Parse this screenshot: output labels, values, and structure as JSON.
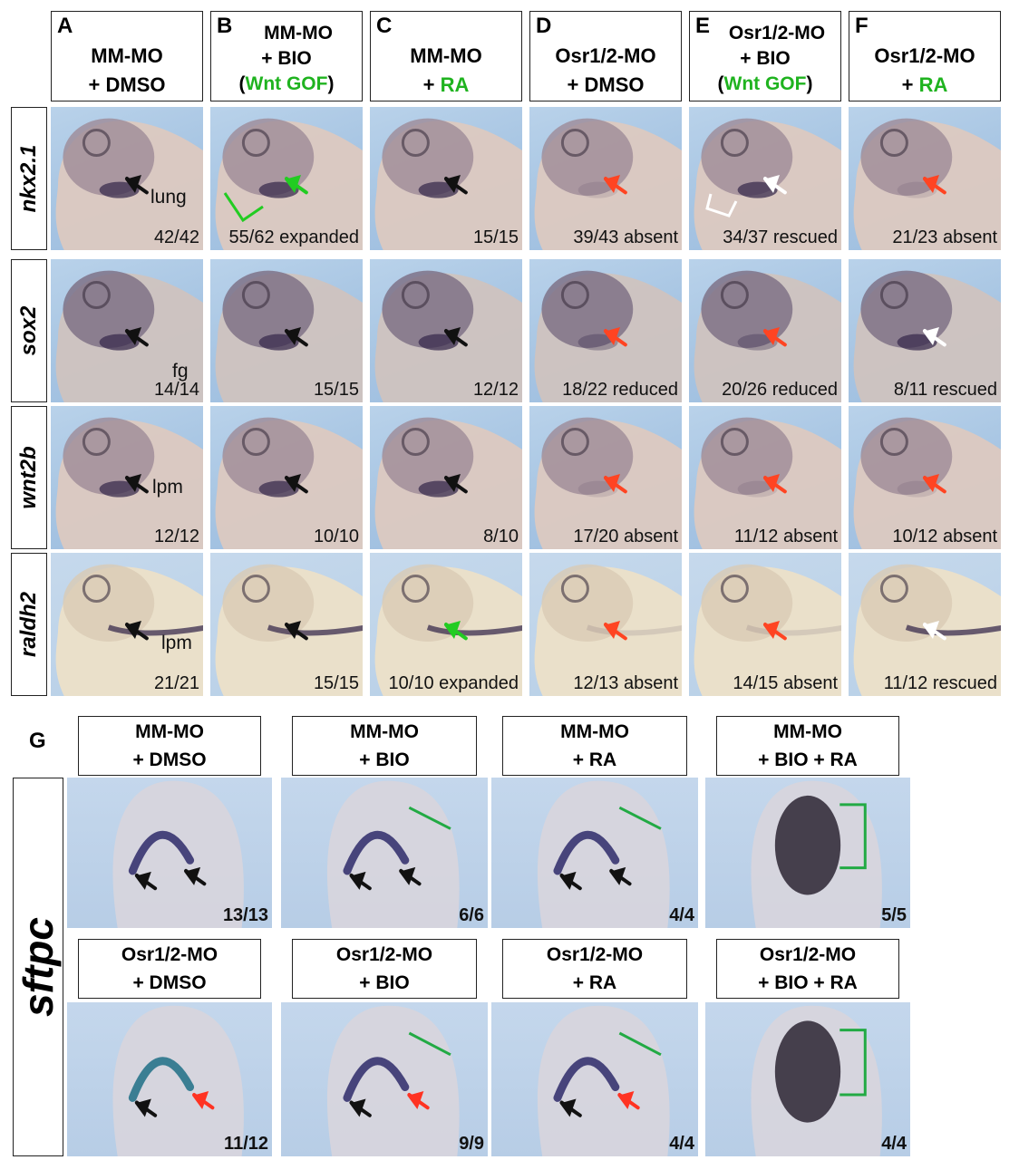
{
  "top_headers": [
    {
      "letter": "A",
      "line1": "MM-MO",
      "line2_parts": [
        {
          "t": "+ DMSO",
          "c": ""
        }
      ]
    },
    {
      "letter": "B",
      "line1": "MM-MO",
      "line2_parts": [
        {
          "t": "+ BIO",
          "c": ""
        }
      ],
      "line3_parts": [
        {
          "t": "(",
          "c": ""
        },
        {
          "t": "Wnt GOF",
          "c": "green"
        },
        {
          "t": ")",
          "c": ""
        }
      ]
    },
    {
      "letter": "C",
      "line1": "MM-MO",
      "line2_parts": [
        {
          "t": "+ ",
          "c": ""
        },
        {
          "t": "RA",
          "c": "green"
        }
      ]
    },
    {
      "letter": "D",
      "line1": "Osr1/2-MO",
      "line2_parts": [
        {
          "t": "+ DMSO",
          "c": ""
        }
      ]
    },
    {
      "letter": "E",
      "line1": "Osr1/2-MO",
      "line2_parts": [
        {
          "t": "+ BIO",
          "c": ""
        }
      ],
      "line3_parts": [
        {
          "t": "(",
          "c": ""
        },
        {
          "t": "Wnt GOF",
          "c": "green"
        },
        {
          "t": ")",
          "c": ""
        }
      ]
    },
    {
      "letter": "F",
      "line1": "Osr1/2-MO",
      "line2_parts": [
        {
          "t": "+ ",
          "c": ""
        },
        {
          "t": "RA",
          "c": "green"
        }
      ]
    }
  ],
  "rows": [
    {
      "gene": "nkx2.1",
      "tag": "lung",
      "counts": [
        "42/42",
        "55/62 expanded",
        "15/15",
        "39/43 absent",
        "34/37 rescued",
        "21/23 absent"
      ],
      "arrows": [
        "black",
        "green",
        "black",
        "red",
        "white",
        "red"
      ]
    },
    {
      "gene": "sox2",
      "tag": "fg",
      "counts": [
        "14/14",
        "15/15",
        "12/12",
        "18/22 reduced",
        "20/26 reduced",
        "8/11 rescued"
      ],
      "arrows": [
        "black",
        "black",
        "black",
        "red",
        "red",
        "white"
      ]
    },
    {
      "gene": "wnt2b",
      "tag": "lpm",
      "counts": [
        "12/12",
        "10/10",
        "8/10",
        "17/20 absent",
        "11/12 absent",
        "10/12 absent"
      ],
      "arrows": [
        "black",
        "black",
        "black",
        "red",
        "red",
        "red"
      ]
    },
    {
      "gene": "raldh2",
      "tag": "lpm",
      "counts": [
        "21/21",
        "15/15",
        "10/10 expanded",
        "12/13 absent",
        "14/15 absent",
        "11/12 rescued"
      ],
      "arrows": [
        "black",
        "black",
        "green",
        "red",
        "red",
        "white"
      ]
    }
  ],
  "panel_g": {
    "letter": "G",
    "gene": "sftpc",
    "headers_top": [
      [
        "MM-MO",
        "+ DMSO"
      ],
      [
        "MM-MO",
        "+ BIO"
      ],
      [
        "MM-MO",
        "+ RA"
      ],
      [
        "MM-MO",
        "+ BIO + RA"
      ]
    ],
    "headers_bottom": [
      [
        "Osr1/2-MO",
        "+ DMSO"
      ],
      [
        "Osr1/2-MO",
        "+ BIO"
      ],
      [
        "Osr1/2-MO",
        "+ RA"
      ],
      [
        "Osr1/2-MO",
        "+ BIO + RA"
      ]
    ],
    "counts_top": [
      "13/13",
      "6/6",
      "4/4",
      "5/5"
    ],
    "counts_bottom": [
      "11/12",
      "9/9",
      "4/4",
      "4/4"
    ]
  },
  "colors": {
    "black_arrow": "#111111",
    "green_arrow": "#22cc22",
    "red_arrow": "#ff4422",
    "white_arrow": "#ffffff",
    "stain": "#3a2c4e",
    "bg": "#a9c6e4"
  }
}
